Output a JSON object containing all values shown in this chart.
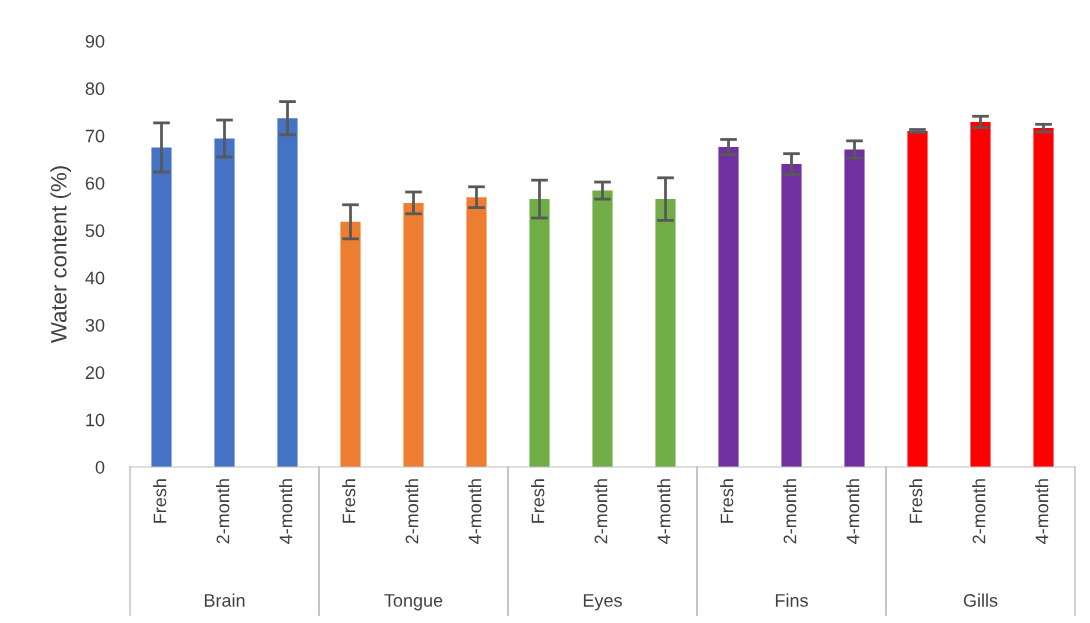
{
  "chart_data": {
    "type": "bar",
    "ylabel": "Water content (%)",
    "categories": [
      "Fresh",
      "2-month",
      "4-month",
      "Fresh",
      "2-month",
      "4-month",
      "Fresh",
      "2-month",
      "4-month",
      "Fresh",
      "2-month",
      "4-month",
      "Fresh",
      "2-month",
      "4-month"
    ],
    "values": [
      67.5,
      69.4,
      73.7,
      51.8,
      55.8,
      57.0,
      56.6,
      58.4,
      56.6,
      67.6,
      64.0,
      67.1,
      71.0,
      72.9,
      71.6
    ],
    "errors": [
      5.2,
      3.9,
      3.5,
      3.6,
      2.3,
      2.2,
      4.0,
      1.8,
      4.5,
      1.6,
      2.2,
      1.8,
      0.3,
      1.2,
      0.8
    ],
    "colors": [
      "#4472c4",
      "#4472c4",
      "#4472c4",
      "#ed7d31",
      "#ed7d31",
      "#ed7d31",
      "#70ad47",
      "#70ad47",
      "#70ad47",
      "#7030a0",
      "#7030a0",
      "#7030a0",
      "#ff0000",
      "#ff0000",
      "#ff0000"
    ],
    "annotations": [
      "Brain",
      "Tongue",
      "Eyes",
      "Fins",
      "Gills"
    ],
    "ylim": [
      0,
      90
    ],
    "yticks": [
      0,
      10,
      20,
      30,
      40,
      50,
      60,
      70,
      80,
      90
    ],
    "grid": false,
    "legend": false
  }
}
